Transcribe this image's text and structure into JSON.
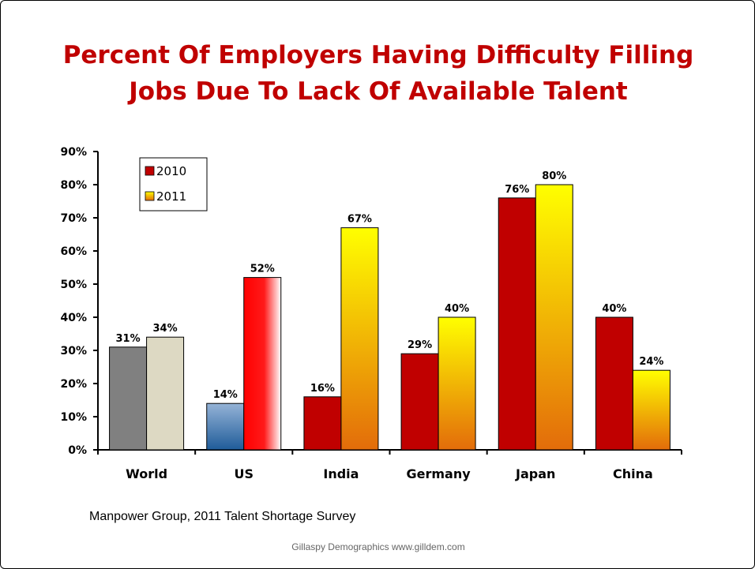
{
  "slide": {
    "title_line1": "Percent Of Employers Having Difficulty Filling",
    "title_line2": "Jobs Due To Lack Of Available Talent",
    "source": "Manpower Group, 2011 Talent Shortage Survey",
    "credit": "Gillaspy Demographics www.gilldem.com"
  },
  "chart_data": {
    "type": "bar",
    "title": "Percent Of Employers Having Difficulty Filling Jobs Due To Lack Of Available Talent",
    "categories": [
      "World",
      "US",
      "India",
      "Germany",
      "Japan",
      "China"
    ],
    "series": [
      {
        "name": "2010",
        "values": [
          31,
          14,
          16,
          29,
          76,
          40
        ],
        "labels": [
          "31%",
          "14%",
          "16%",
          "29%",
          "76%",
          "40%"
        ]
      },
      {
        "name": "2011",
        "values": [
          34,
          52,
          67,
          40,
          80,
          24
        ],
        "labels": [
          "34%",
          "52%",
          "67%",
          "40%",
          "80%",
          "24%"
        ]
      }
    ],
    "ylim": [
      0,
      90
    ],
    "yticks": [
      "0%",
      "10%",
      "20%",
      "30%",
      "40%",
      "50%",
      "60%",
      "70%",
      "80%",
      "90%"
    ],
    "grid": false,
    "legend_position": "top-left",
    "colors": {
      "2010": "#c00000",
      "2011_top": "#ffff00",
      "2011_bottom": "#e36c0a",
      "world_2010": "#808080",
      "world_2011": "#ddd9c3",
      "us_2010_top": "#95b3d7",
      "us_2010_bottom": "#1f5c99",
      "us_2011_left": "#ff0000",
      "us_2011_right": "#ffffff"
    }
  }
}
